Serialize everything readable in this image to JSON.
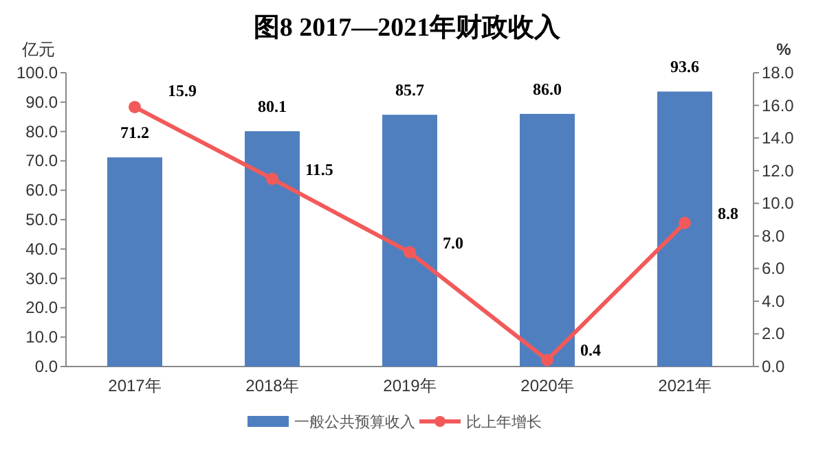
{
  "chart_data": {
    "type": "bar",
    "title": "图8  2017—2021年财政收入",
    "ylabel": "亿元",
    "y2label": "%",
    "categories": [
      "2017年",
      "2018年",
      "2019年",
      "2020年",
      "2021年"
    ],
    "series": [
      {
        "name": "一般公共预算收入",
        "color": "#4f7fbf",
        "values": [
          71.2,
          80.1,
          85.7,
          86.0,
          93.6
        ]
      },
      {
        "name": "比上年增长",
        "type": "line",
        "axis": "y2",
        "color": "#f25a5a",
        "values": [
          15.9,
          11.5,
          7.0,
          0.4,
          8.8
        ]
      }
    ],
    "value_labels": [
      [
        "71.2",
        "80.1",
        "85.7",
        "86.0",
        "93.6"
      ],
      [
        "15.9",
        "11.5",
        "7.0",
        "0.4",
        "8.8"
      ]
    ],
    "ylim": [
      0,
      100
    ],
    "yticks": [
      {
        "value": 0,
        "label": "0.0"
      },
      {
        "value": 10,
        "label": "10.0"
      },
      {
        "value": 20,
        "label": "20.0"
      },
      {
        "value": 30,
        "label": "30.0"
      },
      {
        "value": 40,
        "label": "40.0"
      },
      {
        "value": 50,
        "label": "50.0"
      },
      {
        "value": 60,
        "label": "60.0"
      },
      {
        "value": 70,
        "label": "70.0"
      },
      {
        "value": 80,
        "label": "80.0"
      },
      {
        "value": 90,
        "label": "90.0"
      },
      {
        "value": 100,
        "label": "100.0"
      }
    ],
    "y2lim": [
      0,
      18
    ],
    "y2ticks": [
      {
        "value": 0,
        "label": "0.0"
      },
      {
        "value": 2,
        "label": "2.0"
      },
      {
        "value": 4,
        "label": "4.0"
      },
      {
        "value": 6,
        "label": "6.0"
      },
      {
        "value": 8,
        "label": "8.0"
      },
      {
        "value": 10,
        "label": "10.0"
      },
      {
        "value": 12,
        "label": "12.0"
      },
      {
        "value": 14,
        "label": "14.0"
      },
      {
        "value": 16,
        "label": "16.0"
      },
      {
        "value": 18,
        "label": "18.0"
      }
    ],
    "marker": "circle",
    "legend": "bottom",
    "grid": false
  }
}
